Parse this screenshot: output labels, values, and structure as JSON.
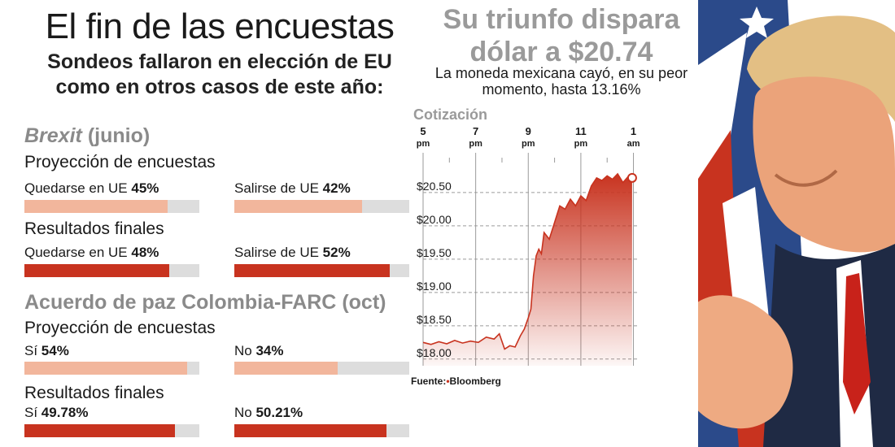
{
  "title": "El fin de las encuestas",
  "subtitle_line1": "Sondeos fallaron en elección de EU",
  "subtitle_line2": "como en otros casos de este año:",
  "sections": [
    {
      "name": "Brexit",
      "when": "(junio)",
      "rows": [
        {
          "heading": "Proyección de encuestas",
          "kind": "proj",
          "bars": [
            {
              "label": "Quedarse en UE",
              "value_text": "45%",
              "fill": 0.82
            },
            {
              "label": "Salirse de UE",
              "value_text": "42%",
              "fill": 0.73
            }
          ]
        },
        {
          "heading": "Resultados finales",
          "kind": "res",
          "bars": [
            {
              "label": "Quedarse en UE",
              "value_text": "48%",
              "fill": 0.83
            },
            {
              "label": "Salirse de UE",
              "value_text": "52%",
              "fill": 0.89
            }
          ]
        }
      ]
    },
    {
      "name": "Acuerdo de paz Colombia-FARC",
      "when": "(oct)",
      "rows": [
        {
          "heading": "Proyección de encuestas",
          "kind": "proj",
          "bars": [
            {
              "label": "Sí",
              "value_text": "54%",
              "fill": 0.93
            },
            {
              "label": "No",
              "value_text": "34%",
              "fill": 0.59
            }
          ]
        },
        {
          "heading": "Resultados finales",
          "kind": "res",
          "bars": [
            {
              "label": "Sí",
              "value_text": "49.78%",
              "fill": 0.86
            },
            {
              "label": "No",
              "value_text": "50.21%",
              "fill": 0.87
            }
          ]
        }
      ]
    }
  ],
  "chart_data": {
    "type": "area",
    "title_line1": "Su triunfo dispara",
    "title_line2": "dólar a $20.74",
    "subtitle_line1": "La moneda mexicana cayó, en su peor",
    "subtitle_line2": "momento, hasta 13.16%",
    "label": "Cotización",
    "x_ticks": [
      {
        "hour": 17,
        "top": "5",
        "bottom": "pm"
      },
      {
        "hour": 19,
        "top": "7",
        "bottom": "pm"
      },
      {
        "hour": 21,
        "top": "9",
        "bottom": "pm"
      },
      {
        "hour": 23,
        "top": "11",
        "bottom": "pm"
      },
      {
        "hour": 25,
        "top": "1",
        "bottom": "am"
      }
    ],
    "y_ticks": [
      {
        "value": 18.0,
        "label": "$18.00"
      },
      {
        "value": 18.5,
        "label": "$18.50"
      },
      {
        "value": 19.0,
        "label": "$19.00"
      },
      {
        "value": 19.5,
        "label": "$19.50"
      },
      {
        "value": 20.0,
        "label": "$20.00"
      },
      {
        "value": 20.5,
        "label": "$20.50"
      }
    ],
    "xlim": [
      17,
      25.2
    ],
    "ylim": [
      17.9,
      20.95
    ],
    "x": [
      17.0,
      17.3,
      17.6,
      17.9,
      18.2,
      18.5,
      18.8,
      19.1,
      19.4,
      19.7,
      19.9,
      20.1,
      20.3,
      20.5,
      20.7,
      20.85,
      21.0,
      21.1,
      21.2,
      21.3,
      21.4,
      21.5,
      21.6,
      21.8,
      22.0,
      22.2,
      22.4,
      22.6,
      22.8,
      23.0,
      23.2,
      23.4,
      23.6,
      23.8,
      24.0,
      24.2,
      24.4,
      24.6,
      24.8,
      24.95
    ],
    "y": [
      18.25,
      18.22,
      18.26,
      18.23,
      18.28,
      18.24,
      18.27,
      18.25,
      18.33,
      18.3,
      18.38,
      18.15,
      18.2,
      18.18,
      18.35,
      18.45,
      18.62,
      18.75,
      19.25,
      19.55,
      19.65,
      19.58,
      19.9,
      19.8,
      20.05,
      20.3,
      20.25,
      20.4,
      20.3,
      20.45,
      20.38,
      20.6,
      20.72,
      20.68,
      20.75,
      20.7,
      20.78,
      20.65,
      20.74,
      20.72
    ],
    "source_prefix": "Fuente:",
    "source_name": "Bloomberg"
  },
  "colors": {
    "accent": "#c8331f",
    "projection": "#f2b69c",
    "track": "#dddddd",
    "muted": "#8a8a8a"
  }
}
